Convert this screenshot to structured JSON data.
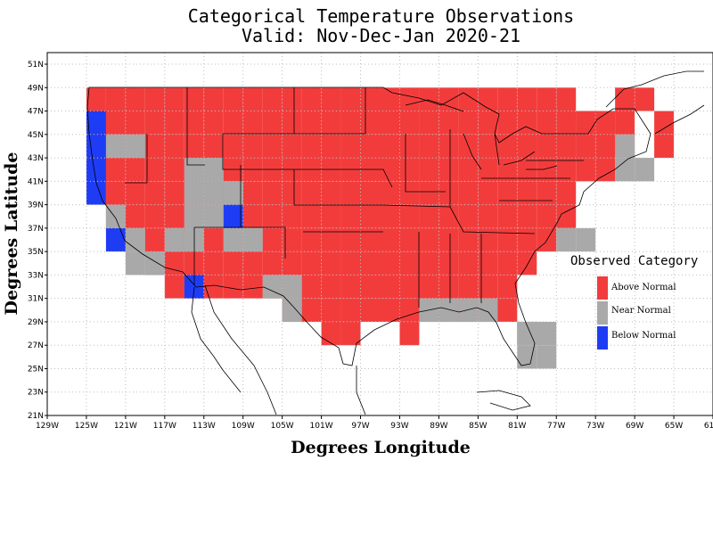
{
  "title_line1": "Categorical Temperature Observations",
  "title_line2": "Valid: Nov-Dec-Jan 2020-21",
  "x_axis_title": "Degrees Longitude",
  "y_axis_title": "Degrees Latitude",
  "x_ticks": [
    "129W",
    "125W",
    "121W",
    "117W",
    "113W",
    "109W",
    "105W",
    "101W",
    "97W",
    "93W",
    "89W",
    "85W",
    "81W",
    "77W",
    "73W",
    "69W",
    "65W",
    "61W"
  ],
  "y_ticks": [
    "21N",
    "23N",
    "25N",
    "27N",
    "29N",
    "31N",
    "33N",
    "35N",
    "37N",
    "39N",
    "41N",
    "43N",
    "45N",
    "47N",
    "49N",
    "51N"
  ],
  "legend": {
    "title": "Observed Category",
    "items": [
      {
        "label": "Above Normal",
        "color": "#f23c3c"
      },
      {
        "label": "Near Normal",
        "color": "#a9a9a9"
      },
      {
        "label": "Below Normal",
        "color": "#1f3cf5"
      }
    ]
  },
  "colors": {
    "above": "#f23c3c",
    "near": "#a9a9a9",
    "below": "#1f3cf5",
    "grid": "#bdbdbd"
  },
  "grid_cells": [
    {
      "lon_w": 125,
      "lat_s": 45,
      "cat": "below"
    },
    {
      "lon_w": 125,
      "lat_s": 43,
      "cat": "below"
    },
    {
      "lon_w": 125,
      "lat_s": 41,
      "cat": "below"
    },
    {
      "lon_w": 125,
      "lat_s": 39,
      "cat": "below"
    },
    {
      "lon_w": 123,
      "lat_s": 35,
      "cat": "below"
    },
    {
      "lon_w": 111,
      "lat_s": 37,
      "cat": "below"
    },
    {
      "lon_w": 115,
      "lat_s": 31,
      "cat": "below"
    },
    {
      "lon_w": 123,
      "lat_s": 43,
      "cat": "near"
    },
    {
      "lon_w": 121,
      "lat_s": 43,
      "cat": "near"
    },
    {
      "lon_w": 115,
      "lat_s": 41,
      "cat": "near"
    },
    {
      "lon_w": 113,
      "lat_s": 41,
      "cat": "near"
    },
    {
      "lon_w": 115,
      "lat_s": 39,
      "cat": "near"
    },
    {
      "lon_w": 113,
      "lat_s": 39,
      "cat": "near"
    },
    {
      "lon_w": 111,
      "lat_s": 39,
      "cat": "near"
    },
    {
      "lon_w": 115,
      "lat_s": 37,
      "cat": "near"
    },
    {
      "lon_w": 113,
      "lat_s": 37,
      "cat": "near"
    },
    {
      "lon_w": 123,
      "lat_s": 37,
      "cat": "near"
    },
    {
      "lon_w": 121,
      "lat_s": 35,
      "cat": "near"
    },
    {
      "lon_w": 117,
      "lat_s": 35,
      "cat": "near"
    },
    {
      "lon_w": 115,
      "lat_s": 35,
      "cat": "near"
    },
    {
      "lon_w": 111,
      "lat_s": 35,
      "cat": "near"
    },
    {
      "lon_w": 109,
      "lat_s": 35,
      "cat": "near"
    },
    {
      "lon_w": 121,
      "lat_s": 33,
      "cat": "near"
    },
    {
      "lon_w": 119,
      "lat_s": 33,
      "cat": "near"
    },
    {
      "lon_w": 107,
      "lat_s": 31,
      "cat": "near"
    },
    {
      "lon_w": 105,
      "lat_s": 31,
      "cat": "near"
    },
    {
      "lon_w": 105,
      "lat_s": 29,
      "cat": "near"
    },
    {
      "lon_w": 91,
      "lat_s": 29,
      "cat": "near"
    },
    {
      "lon_w": 89,
      "lat_s": 29,
      "cat": "near"
    },
    {
      "lon_w": 87,
      "lat_s": 29,
      "cat": "near"
    },
    {
      "lon_w": 85,
      "lat_s": 29,
      "cat": "near"
    },
    {
      "lon_w": 81,
      "lat_s": 27,
      "cat": "near"
    },
    {
      "lon_w": 79,
      "lat_s": 27,
      "cat": "near"
    },
    {
      "lon_w": 81,
      "lat_s": 25,
      "cat": "near"
    },
    {
      "lon_w": 79,
      "lat_s": 25,
      "cat": "near"
    },
    {
      "lon_w": 77,
      "lat_s": 35,
      "cat": "near"
    },
    {
      "lon_w": 75,
      "lat_s": 35,
      "cat": "near"
    },
    {
      "lon_w": 71,
      "lat_s": 41,
      "cat": "near"
    },
    {
      "lon_w": 69,
      "lat_s": 41,
      "cat": "near"
    },
    {
      "lon_w": 71,
      "lat_s": 43,
      "cat": "near"
    }
  ]
}
